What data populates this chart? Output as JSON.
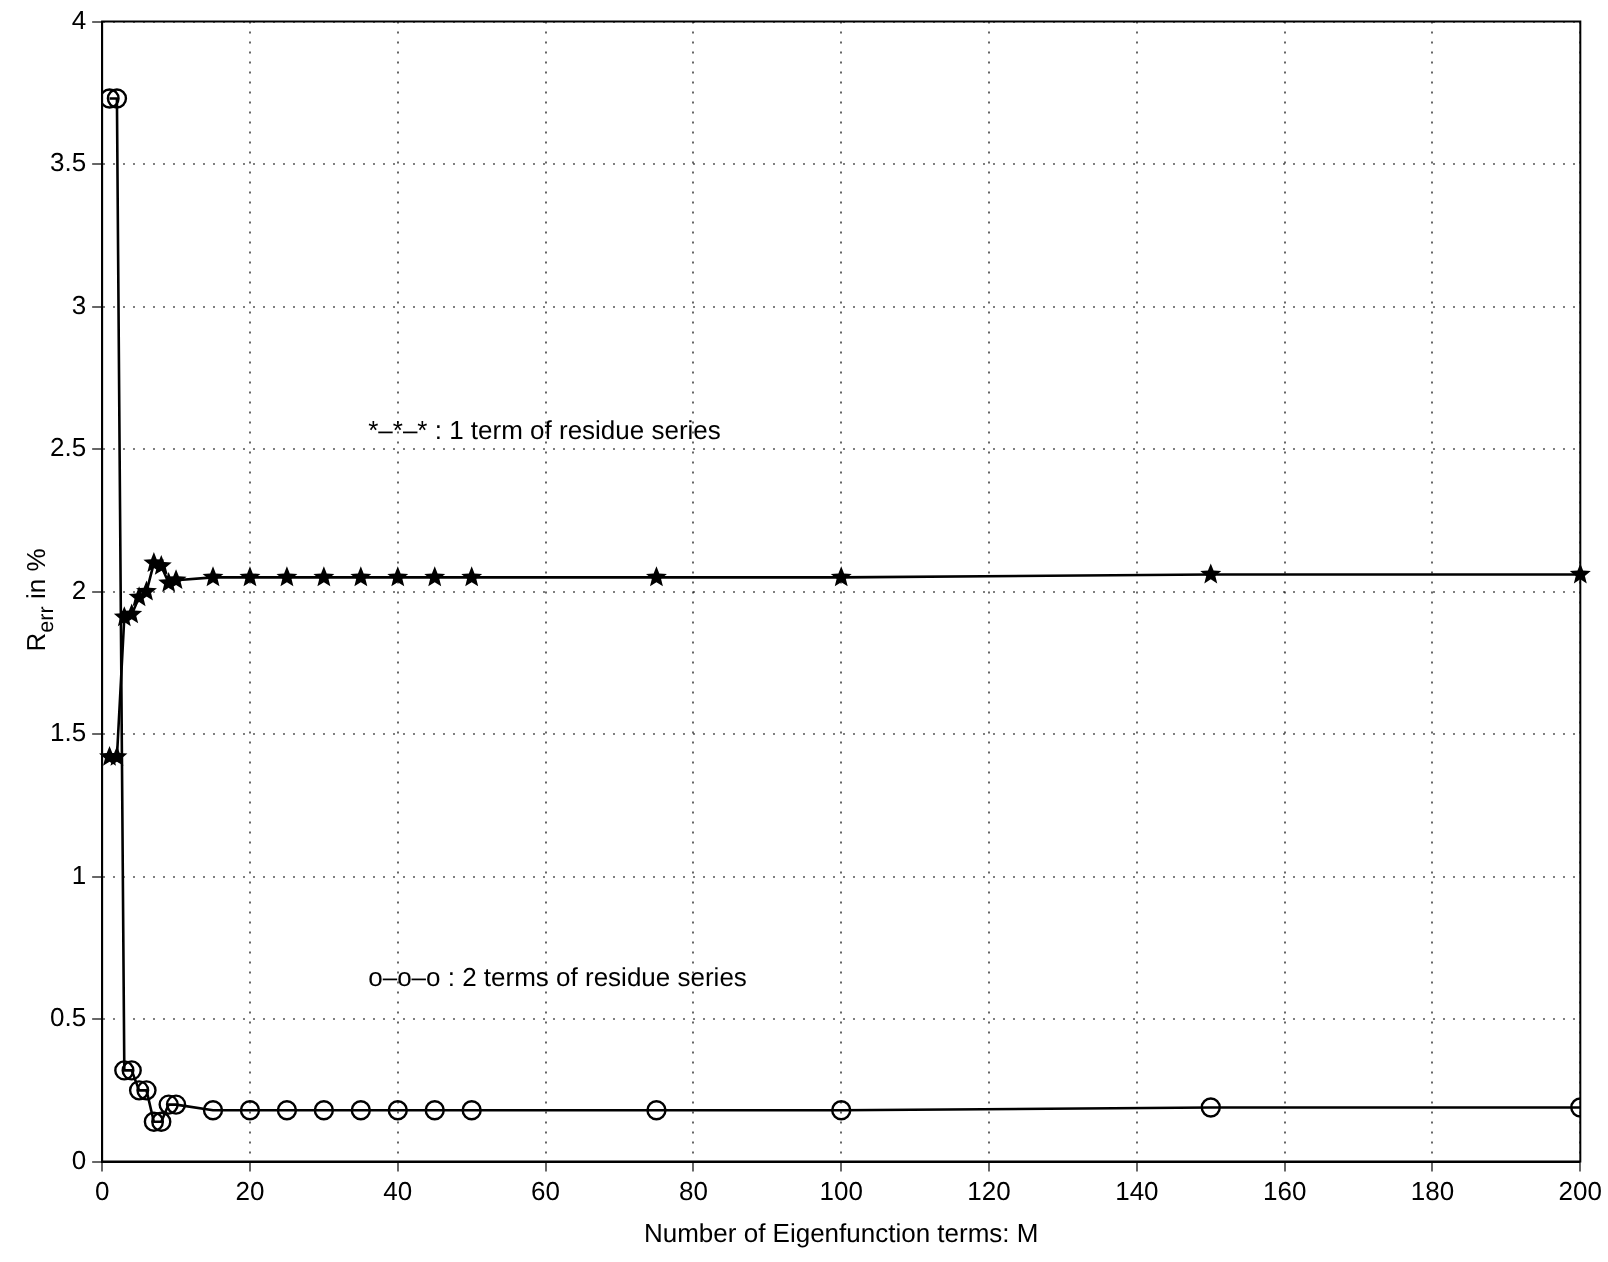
{
  "chart_data": {
    "type": "line",
    "xlabel": "Number of Eigenfunction terms: M",
    "ylabel": "R$_{err}$ in %",
    "annotations": [
      "*–*–* : 1 term of residue series",
      "o–o–o : 2 terms of residue series"
    ],
    "series": [
      {
        "type": "line",
        "color": "#000000",
        "marker": "star",
        "x": [
          1,
          2,
          3,
          4,
          5,
          6,
          7,
          8,
          9,
          10,
          15,
          20,
          25,
          30,
          35,
          40,
          45,
          50,
          75,
          100,
          150,
          200
        ],
        "values": [
          1.42,
          1.42,
          1.91,
          1.92,
          1.98,
          2.0,
          2.1,
          2.09,
          2.03,
          2.04,
          2.05,
          2.05,
          2.05,
          2.05,
          2.05,
          2.05,
          2.05,
          2.05,
          2.05,
          2.05,
          2.06,
          2.06
        ]
      },
      {
        "type": "line",
        "color": "#000000",
        "marker": "circle",
        "x": [
          1,
          2,
          3,
          4,
          5,
          6,
          7,
          8,
          9,
          10,
          15,
          20,
          25,
          30,
          35,
          40,
          45,
          50,
          75,
          100,
          150,
          200
        ],
        "values": [
          3.73,
          3.73,
          0.32,
          0.32,
          0.25,
          0.25,
          0.14,
          0.14,
          0.2,
          0.2,
          0.18,
          0.18,
          0.18,
          0.18,
          0.18,
          0.18,
          0.18,
          0.18,
          0.18,
          0.18,
          0.19,
          0.19
        ]
      }
    ],
    "xlim": [
      0,
      200
    ],
    "xticks": [
      0,
      20,
      40,
      60,
      80,
      100,
      120,
      140,
      160,
      180,
      200
    ],
    "ylim": [
      0,
      4
    ],
    "yticks": [
      0,
      0.5,
      1,
      1.5,
      2,
      2.5,
      3,
      3.5,
      4
    ],
    "grid": true,
    "legend": false,
    "line_style": "solid"
  }
}
